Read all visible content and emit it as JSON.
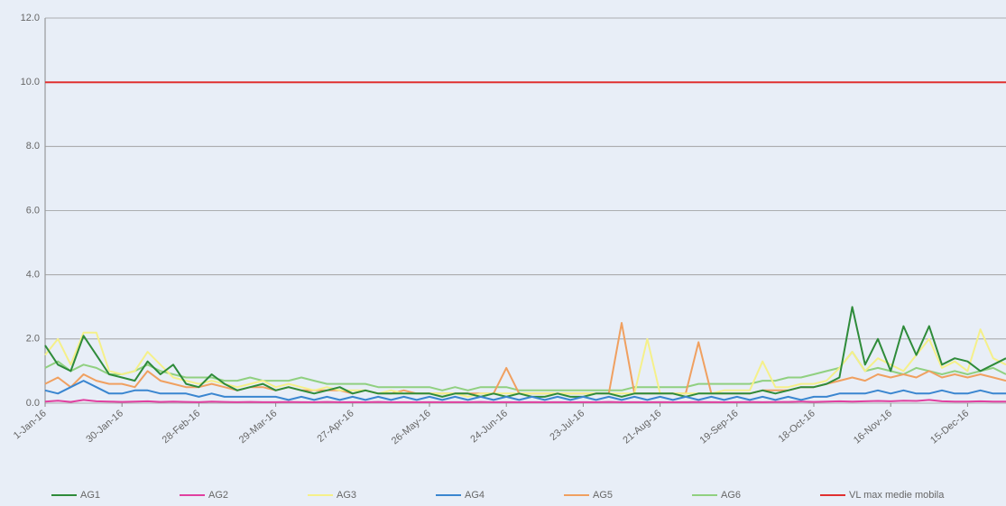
{
  "chart_data": {
    "type": "line",
    "categories": [
      "1-Jan-16",
      null,
      null,
      null,
      null,
      null,
      "30-Jan-16",
      null,
      null,
      null,
      null,
      null,
      "28-Feb-16",
      null,
      null,
      null,
      null,
      null,
      "29-Mar-16",
      null,
      null,
      null,
      null,
      null,
      "27-Apr-16",
      null,
      null,
      null,
      null,
      null,
      "26-May-16",
      null,
      null,
      null,
      null,
      null,
      "24-Jun-16",
      null,
      null,
      null,
      null,
      null,
      "23-Jul-16",
      null,
      null,
      null,
      null,
      null,
      "21-Aug-16",
      null,
      null,
      null,
      null,
      null,
      "19-Sep-16",
      null,
      null,
      null,
      null,
      null,
      "18-Oct-16",
      null,
      null,
      null,
      null,
      null,
      "16-Nov-16",
      null,
      null,
      null,
      null,
      null,
      "15-Dec-16",
      null,
      null,
      null
    ],
    "series": [
      {
        "name": "AG1",
        "color": "#2e8b3a",
        "values": [
          1.8,
          1.2,
          1.0,
          2.1,
          1.5,
          0.9,
          0.8,
          0.7,
          1.3,
          0.9,
          1.2,
          0.6,
          0.5,
          0.9,
          0.6,
          0.4,
          0.5,
          0.6,
          0.4,
          0.5,
          0.4,
          0.3,
          0.4,
          0.5,
          0.3,
          0.4,
          0.3,
          0.3,
          0.3,
          0.3,
          0.3,
          0.2,
          0.3,
          0.3,
          0.2,
          0.3,
          0.2,
          0.3,
          0.2,
          0.2,
          0.3,
          0.2,
          0.2,
          0.3,
          0.3,
          0.2,
          0.3,
          0.3,
          0.3,
          0.3,
          0.2,
          0.3,
          0.3,
          0.3,
          0.3,
          0.3,
          0.4,
          0.3,
          0.4,
          0.5,
          0.5,
          0.6,
          0.8,
          3.0,
          1.2,
          2.0,
          1.0,
          2.4,
          1.5,
          2.4,
          1.2,
          1.4,
          1.3,
          1.0,
          1.2,
          1.4
        ]
      },
      {
        "name": "AG2",
        "color": "#e040a0",
        "values": [
          0.05,
          0.08,
          0.04,
          0.1,
          0.06,
          0.05,
          0.04,
          0.05,
          0.06,
          0.04,
          0.05,
          0.04,
          0.03,
          0.05,
          0.04,
          0.03,
          0.04,
          0.03,
          0.03,
          0.04,
          0.03,
          0.03,
          0.04,
          0.03,
          0.03,
          0.03,
          0.04,
          0.03,
          0.03,
          0.03,
          0.03,
          0.03,
          0.03,
          0.03,
          0.04,
          0.03,
          0.03,
          0.03,
          0.03,
          0.03,
          0.03,
          0.03,
          0.03,
          0.03,
          0.04,
          0.03,
          0.03,
          0.03,
          0.03,
          0.03,
          0.03,
          0.04,
          0.03,
          0.03,
          0.03,
          0.04,
          0.03,
          0.04,
          0.04,
          0.05,
          0.04,
          0.05,
          0.06,
          0.05,
          0.06,
          0.07,
          0.06,
          0.08,
          0.07,
          0.1,
          0.06,
          0.05,
          0.05,
          0.06,
          0.05,
          0.05
        ]
      },
      {
        "name": "AG3",
        "color": "#f5f08a",
        "values": [
          1.5,
          2.0,
          1.2,
          2.2,
          2.2,
          1.0,
          0.9,
          1.0,
          1.6,
          1.2,
          0.8,
          0.7,
          0.6,
          0.7,
          0.6,
          0.5,
          0.6,
          0.7,
          0.5,
          0.6,
          0.5,
          0.4,
          0.5,
          0.4,
          0.4,
          0.4,
          0.3,
          0.4,
          0.3,
          0.3,
          0.3,
          0.3,
          0.3,
          0.2,
          0.3,
          0.3,
          0.3,
          0.3,
          0.3,
          0.3,
          0.3,
          0.3,
          0.3,
          0.3,
          0.3,
          0.3,
          0.3,
          2.0,
          0.3,
          0.3,
          0.3,
          0.3,
          0.3,
          0.4,
          0.4,
          0.4,
          1.3,
          0.5,
          0.5,
          0.6,
          0.6,
          0.7,
          1.1,
          1.6,
          1.0,
          1.4,
          1.2,
          1.0,
          1.5,
          2.0,
          1.1,
          1.3,
          1.0,
          2.3,
          1.4,
          1.2
        ]
      },
      {
        "name": "AG4",
        "color": "#3a86d0",
        "values": [
          0.4,
          0.3,
          0.5,
          0.7,
          0.5,
          0.3,
          0.3,
          0.4,
          0.4,
          0.3,
          0.3,
          0.3,
          0.2,
          0.3,
          0.2,
          0.2,
          0.2,
          0.2,
          0.2,
          0.1,
          0.2,
          0.1,
          0.2,
          0.1,
          0.2,
          0.1,
          0.2,
          0.1,
          0.2,
          0.1,
          0.2,
          0.1,
          0.2,
          0.1,
          0.2,
          0.1,
          0.2,
          0.1,
          0.2,
          0.1,
          0.2,
          0.1,
          0.2,
          0.1,
          0.2,
          0.1,
          0.2,
          0.1,
          0.2,
          0.1,
          0.2,
          0.1,
          0.2,
          0.1,
          0.2,
          0.1,
          0.2,
          0.1,
          0.2,
          0.1,
          0.2,
          0.2,
          0.3,
          0.3,
          0.3,
          0.4,
          0.3,
          0.4,
          0.3,
          0.3,
          0.4,
          0.3,
          0.3,
          0.4,
          0.3,
          0.3
        ]
      },
      {
        "name": "AG5",
        "color": "#f0a060",
        "values": [
          0.6,
          0.8,
          0.5,
          0.9,
          0.7,
          0.6,
          0.6,
          0.5,
          1.0,
          0.7,
          0.6,
          0.5,
          0.5,
          0.6,
          0.5,
          0.4,
          0.5,
          0.5,
          0.4,
          0.5,
          0.4,
          0.4,
          0.4,
          0.4,
          0.3,
          0.4,
          0.3,
          0.3,
          0.4,
          0.3,
          0.3,
          0.3,
          0.3,
          0.3,
          0.3,
          0.3,
          1.1,
          0.3,
          0.3,
          0.3,
          0.3,
          0.3,
          0.3,
          0.3,
          0.3,
          2.5,
          0.3,
          0.3,
          0.3,
          0.3,
          0.3,
          1.9,
          0.3,
          0.3,
          0.3,
          0.3,
          0.4,
          0.4,
          0.4,
          0.5,
          0.5,
          0.6,
          0.7,
          0.8,
          0.7,
          0.9,
          0.8,
          0.9,
          0.8,
          1.0,
          0.8,
          0.9,
          0.8,
          0.9,
          0.8,
          0.7
        ]
      },
      {
        "name": "AG6",
        "color": "#90d080",
        "values": [
          1.1,
          1.3,
          1.0,
          1.2,
          1.1,
          0.9,
          0.9,
          1.0,
          1.2,
          1.0,
          0.9,
          0.8,
          0.8,
          0.8,
          0.7,
          0.7,
          0.8,
          0.7,
          0.7,
          0.7,
          0.8,
          0.7,
          0.6,
          0.6,
          0.6,
          0.6,
          0.5,
          0.5,
          0.5,
          0.5,
          0.5,
          0.4,
          0.5,
          0.4,
          0.5,
          0.5,
          0.5,
          0.4,
          0.4,
          0.4,
          0.4,
          0.4,
          0.4,
          0.4,
          0.4,
          0.4,
          0.5,
          0.5,
          0.5,
          0.5,
          0.5,
          0.6,
          0.6,
          0.6,
          0.6,
          0.6,
          0.7,
          0.7,
          0.8,
          0.8,
          0.9,
          1.0,
          1.1,
          1.6,
          1.0,
          1.1,
          1.0,
          0.9,
          1.1,
          1.0,
          0.9,
          1.0,
          0.9,
          1.0,
          1.1,
          0.9
        ]
      },
      {
        "name": "VL max medie mobila",
        "color": "#e03030",
        "values": [
          10,
          10,
          10,
          10,
          10,
          10,
          10,
          10,
          10,
          10,
          10,
          10,
          10,
          10,
          10,
          10,
          10,
          10,
          10,
          10,
          10,
          10,
          10,
          10,
          10,
          10,
          10,
          10,
          10,
          10,
          10,
          10,
          10,
          10,
          10,
          10,
          10,
          10,
          10,
          10,
          10,
          10,
          10,
          10,
          10,
          10,
          10,
          10,
          10,
          10,
          10,
          10,
          10,
          10,
          10,
          10,
          10,
          10,
          10,
          10,
          10,
          10,
          10,
          10,
          10,
          10,
          10,
          10,
          10,
          10,
          10,
          10,
          10,
          10,
          10,
          10
        ]
      }
    ],
    "ylim": [
      0,
      12
    ],
    "yticks": [
      {
        "value": 0,
        "label": "0.0"
      },
      {
        "value": 2,
        "label": "2.0"
      },
      {
        "value": 4,
        "label": "4.0"
      },
      {
        "value": 6,
        "label": "6.0"
      },
      {
        "value": 8,
        "label": "8.0"
      },
      {
        "value": 10,
        "label": "10.0"
      },
      {
        "value": 12,
        "label": "12.0"
      }
    ],
    "grid": true,
    "legend": "bottom"
  }
}
